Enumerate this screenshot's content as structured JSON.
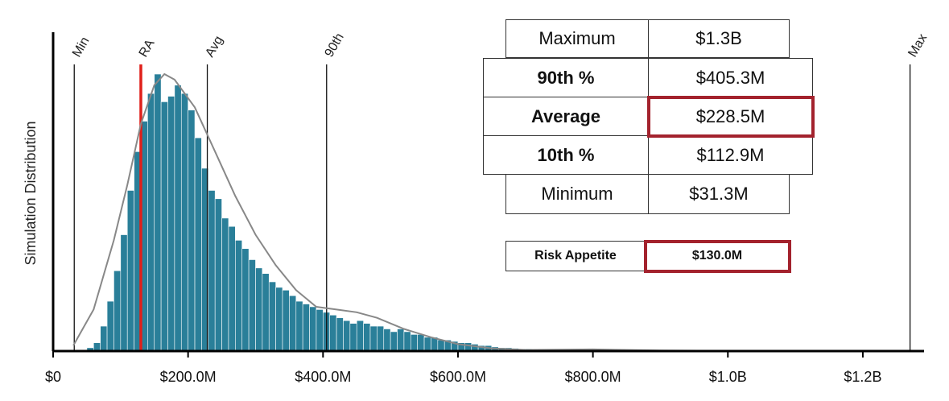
{
  "chart_data": {
    "type": "bar",
    "ylabel": "Simulation Distribution",
    "xlabel": "",
    "xlim": [
      0,
      1280
    ],
    "x_unit": "$M",
    "x_ticks": [
      {
        "value": 0,
        "label": "$0"
      },
      {
        "value": 200,
        "label": "$200.0M"
      },
      {
        "value": 400,
        "label": "$400.0M"
      },
      {
        "value": 600,
        "label": "$600.0M"
      },
      {
        "value": 800,
        "label": "$800.0M"
      },
      {
        "value": 1000,
        "label": "$1.0B"
      },
      {
        "value": 1200,
        "label": "$1.2B"
      }
    ],
    "bin_start": 50,
    "bin_width": 10,
    "histogram_relative_heights": [
      0.012,
      0.03,
      0.09,
      0.18,
      0.29,
      0.42,
      0.58,
      0.72,
      0.83,
      0.93,
      1.0,
      0.9,
      0.92,
      0.96,
      0.93,
      0.87,
      0.77,
      0.66,
      0.58,
      0.55,
      0.48,
      0.45,
      0.4,
      0.37,
      0.33,
      0.3,
      0.28,
      0.25,
      0.23,
      0.22,
      0.2,
      0.18,
      0.17,
      0.16,
      0.15,
      0.14,
      0.13,
      0.12,
      0.11,
      0.1,
      0.11,
      0.1,
      0.09,
      0.09,
      0.08,
      0.07,
      0.08,
      0.07,
      0.06,
      0.06,
      0.05,
      0.05,
      0.04,
      0.04,
      0.035,
      0.03,
      0.03,
      0.025,
      0.02,
      0.02,
      0.015,
      0.012,
      0.012,
      0.01,
      0.008,
      0.008,
      0.006,
      0.005,
      0.005,
      0.004,
      0.004,
      0.006,
      0.005,
      0.004,
      0.003,
      0.003,
      0.002,
      0.002,
      0.002,
      0.001
    ],
    "density_curve": [
      {
        "x": 30,
        "y": 0.02
      },
      {
        "x": 60,
        "y": 0.15
      },
      {
        "x": 90,
        "y": 0.4
      },
      {
        "x": 110,
        "y": 0.6
      },
      {
        "x": 130,
        "y": 0.82
      },
      {
        "x": 150,
        "y": 0.96
      },
      {
        "x": 165,
        "y": 1.0
      },
      {
        "x": 180,
        "y": 0.98
      },
      {
        "x": 210,
        "y": 0.88
      },
      {
        "x": 240,
        "y": 0.72
      },
      {
        "x": 270,
        "y": 0.56
      },
      {
        "x": 300,
        "y": 0.42
      },
      {
        "x": 330,
        "y": 0.31
      },
      {
        "x": 360,
        "y": 0.22
      },
      {
        "x": 390,
        "y": 0.16
      },
      {
        "x": 420,
        "y": 0.15
      },
      {
        "x": 450,
        "y": 0.14
      },
      {
        "x": 480,
        "y": 0.12
      },
      {
        "x": 520,
        "y": 0.08
      },
      {
        "x": 560,
        "y": 0.05
      },
      {
        "x": 600,
        "y": 0.025
      },
      {
        "x": 650,
        "y": 0.01
      },
      {
        "x": 700,
        "y": 0.004
      },
      {
        "x": 800,
        "y": 0.006
      },
      {
        "x": 900,
        "y": 0.002
      },
      {
        "x": 1000,
        "y": 0.001
      },
      {
        "x": 1270,
        "y": 0.0
      }
    ],
    "markers": [
      {
        "label": "Min",
        "value": 31.3
      },
      {
        "label": "RA",
        "value": 130.0,
        "color": "#e0201a"
      },
      {
        "label": "Avg",
        "value": 228.5
      },
      {
        "label": "90th",
        "value": 405.3
      },
      {
        "label": "Max",
        "value": 1270
      }
    ],
    "colors": {
      "bars": "#2a7f99",
      "curve": "#888888",
      "ra_line": "#e0201a",
      "highlight": "#a3222d"
    },
    "grid": false
  },
  "stats": {
    "rows": [
      {
        "label": "Maximum",
        "value": "$1.3B",
        "bold": false,
        "highlight": false
      },
      {
        "label": "90th %",
        "value": "$405.3M",
        "bold": true,
        "highlight": false
      },
      {
        "label": "Average",
        "value": "$228.5M",
        "bold": true,
        "highlight": true
      },
      {
        "label": "10th %",
        "value": "$112.9M",
        "bold": true,
        "highlight": false
      },
      {
        "label": "Minimum",
        "value": "$31.3M",
        "bold": false,
        "highlight": false
      }
    ],
    "risk_appetite": {
      "label": "Risk Appetite",
      "value": "$130.0M",
      "highlight": true
    }
  }
}
